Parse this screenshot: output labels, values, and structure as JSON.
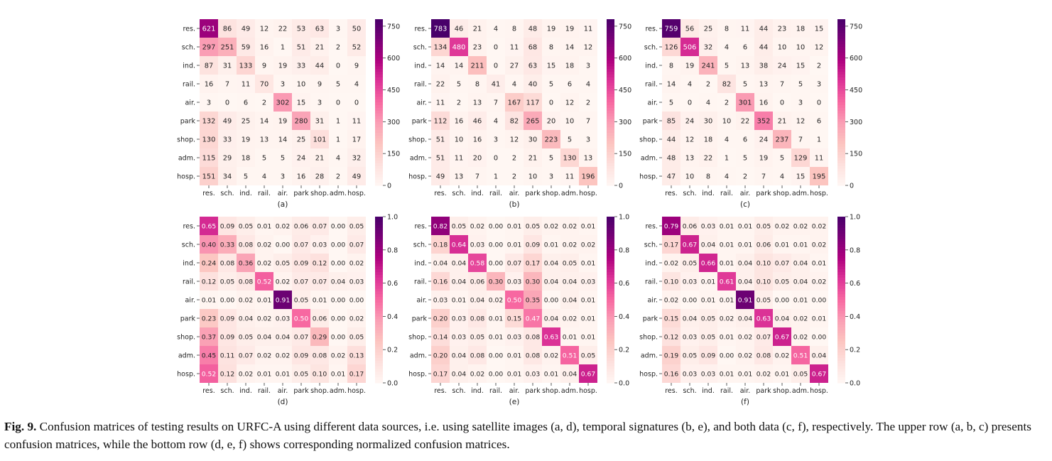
{
  "chart_data": [
    {
      "type": "heatmap",
      "panel": "(a)",
      "normalized": false,
      "rows": [
        "res.",
        "sch.",
        "ind.",
        "rail.",
        "air.",
        "park",
        "shop.",
        "adm.",
        "hosp."
      ],
      "cols": [
        "res.",
        "sch.",
        "ind.",
        "rail.",
        "air.",
        "park",
        "shop.",
        "adm.",
        "hosp."
      ],
      "values": [
        [
          621,
          86,
          49,
          12,
          22,
          53,
          63,
          3,
          50
        ],
        [
          297,
          251,
          59,
          16,
          1,
          51,
          21,
          2,
          52
        ],
        [
          87,
          31,
          133,
          9,
          19,
          33,
          44,
          0,
          9
        ],
        [
          16,
          7,
          11,
          70,
          3,
          10,
          9,
          5,
          4
        ],
        [
          3,
          0,
          6,
          2,
          302,
          15,
          3,
          0,
          0
        ],
        [
          132,
          49,
          25,
          14,
          19,
          280,
          31,
          1,
          11
        ],
        [
          130,
          33,
          19,
          13,
          14,
          25,
          101,
          1,
          17
        ],
        [
          115,
          29,
          18,
          5,
          5,
          24,
          21,
          4,
          32
        ],
        [
          151,
          34,
          5,
          4,
          3,
          16,
          28,
          2,
          49
        ]
      ],
      "vmin": 0,
      "vmax": 783,
      "cbar_ticks": [
        "750",
        "600",
        "450",
        "300",
        "150",
        "0"
      ],
      "cbar_values": [
        750,
        600,
        450,
        300,
        150,
        0
      ]
    },
    {
      "type": "heatmap",
      "panel": "(b)",
      "normalized": false,
      "rows": [
        "res.",
        "sch.",
        "ind.",
        "rail.",
        "air.",
        "park",
        "shop.",
        "adm.",
        "hosp."
      ],
      "cols": [
        "res.",
        "sch.",
        "ind.",
        "rail.",
        "air.",
        "park",
        "shop.",
        "adm.",
        "hosp."
      ],
      "values": [
        [
          783,
          46,
          21,
          4,
          8,
          48,
          19,
          19,
          11
        ],
        [
          134,
          480,
          23,
          0,
          11,
          68,
          8,
          14,
          12
        ],
        [
          14,
          14,
          211,
          0,
          27,
          63,
          15,
          18,
          3
        ],
        [
          22,
          5,
          8,
          41,
          4,
          40,
          5,
          6,
          4
        ],
        [
          11,
          2,
          13,
          7,
          167,
          117,
          0,
          12,
          2
        ],
        [
          112,
          16,
          46,
          4,
          82,
          265,
          20,
          10,
          7
        ],
        [
          51,
          10,
          16,
          3,
          12,
          30,
          223,
          5,
          3
        ],
        [
          51,
          11,
          20,
          0,
          2,
          21,
          5,
          130,
          13
        ],
        [
          49,
          13,
          7,
          1,
          2,
          10,
          3,
          11,
          196
        ]
      ],
      "vmin": 0,
      "vmax": 783,
      "cbar_ticks": [
        "750",
        "600",
        "450",
        "300",
        "150",
        "0"
      ],
      "cbar_values": [
        750,
        600,
        450,
        300,
        150,
        0
      ]
    },
    {
      "type": "heatmap",
      "panel": "(c)",
      "normalized": false,
      "rows": [
        "res.",
        "sch.",
        "ind.",
        "rail.",
        "air.",
        "park",
        "shop.",
        "adm.",
        "hosp."
      ],
      "cols": [
        "res.",
        "sch.",
        "ind.",
        "rail.",
        "air.",
        "park",
        "shop.",
        "adm.",
        "hosp."
      ],
      "values": [
        [
          759,
          56,
          25,
          8,
          11,
          44,
          23,
          18,
          15
        ],
        [
          126,
          506,
          32,
          4,
          6,
          44,
          10,
          10,
          12
        ],
        [
          8,
          19,
          241,
          5,
          13,
          38,
          24,
          15,
          2
        ],
        [
          14,
          4,
          2,
          82,
          5,
          13,
          7,
          5,
          3
        ],
        [
          5,
          0,
          4,
          2,
          301,
          16,
          0,
          3,
          0
        ],
        [
          85,
          24,
          30,
          10,
          22,
          352,
          21,
          12,
          6
        ],
        [
          44,
          12,
          18,
          4,
          6,
          24,
          237,
          7,
          1
        ],
        [
          48,
          13,
          22,
          1,
          5,
          19,
          5,
          129,
          11
        ],
        [
          47,
          10,
          8,
          4,
          2,
          7,
          4,
          15,
          195
        ]
      ],
      "vmin": 0,
      "vmax": 783,
      "cbar_ticks": [
        "750",
        "600",
        "450",
        "300",
        "150",
        "0"
      ],
      "cbar_values": [
        750,
        600,
        450,
        300,
        150,
        0
      ]
    },
    {
      "type": "heatmap",
      "panel": "(d)",
      "normalized": true,
      "rows": [
        "res.",
        "sch.",
        "ind.",
        "rail.",
        "air.",
        "park",
        "shop.",
        "adm.",
        "hosp."
      ],
      "cols": [
        "res.",
        "sch.",
        "ind.",
        "rail.",
        "air.",
        "park",
        "shop.",
        "adm.",
        "hosp."
      ],
      "values": [
        [
          0.65,
          0.09,
          0.05,
          0.01,
          0.02,
          0.06,
          0.07,
          0.0,
          0.05
        ],
        [
          0.4,
          0.33,
          0.08,
          0.02,
          0.0,
          0.07,
          0.03,
          0.0,
          0.07
        ],
        [
          0.24,
          0.08,
          0.36,
          0.02,
          0.05,
          0.09,
          0.12,
          0.0,
          0.02
        ],
        [
          0.12,
          0.05,
          0.08,
          0.52,
          0.02,
          0.07,
          0.07,
          0.04,
          0.03
        ],
        [
          0.01,
          0.0,
          0.02,
          0.01,
          0.91,
          0.05,
          0.01,
          0.0,
          0.0
        ],
        [
          0.23,
          0.09,
          0.04,
          0.02,
          0.03,
          0.5,
          0.06,
          0.0,
          0.02
        ],
        [
          0.37,
          0.09,
          0.05,
          0.04,
          0.04,
          0.07,
          0.29,
          0.0,
          0.05
        ],
        [
          0.45,
          0.11,
          0.07,
          0.02,
          0.02,
          0.09,
          0.08,
          0.02,
          0.13
        ],
        [
          0.52,
          0.12,
          0.02,
          0.01,
          0.01,
          0.05,
          0.1,
          0.01,
          0.17
        ]
      ],
      "vmin": 0,
      "vmax": 1.0,
      "cbar_ticks": [
        "1.0",
        "0.8",
        "0.6",
        "0.4",
        "0.2",
        "0.0"
      ],
      "cbar_values": [
        1.0,
        0.8,
        0.6,
        0.4,
        0.2,
        0.0
      ]
    },
    {
      "type": "heatmap",
      "panel": "(e)",
      "normalized": true,
      "rows": [
        "res.",
        "sch.",
        "ind.",
        "rail.",
        "air.",
        "park",
        "shop.",
        "adm.",
        "hosp."
      ],
      "cols": [
        "res.",
        "sch.",
        "ind.",
        "rail.",
        "air.",
        "park",
        "shop.",
        "adm.",
        "hosp."
      ],
      "values": [
        [
          0.82,
          0.05,
          0.02,
          0.0,
          0.01,
          0.05,
          0.02,
          0.02,
          0.01
        ],
        [
          0.18,
          0.64,
          0.03,
          0.0,
          0.01,
          0.09,
          0.01,
          0.02,
          0.02
        ],
        [
          0.04,
          0.04,
          0.58,
          0.0,
          0.07,
          0.17,
          0.04,
          0.05,
          0.01
        ],
        [
          0.16,
          0.04,
          0.06,
          0.3,
          0.03,
          0.3,
          0.04,
          0.04,
          0.03
        ],
        [
          0.03,
          0.01,
          0.04,
          0.02,
          0.5,
          0.35,
          0.0,
          0.04,
          0.01
        ],
        [
          0.2,
          0.03,
          0.08,
          0.01,
          0.15,
          0.47,
          0.04,
          0.02,
          0.01
        ],
        [
          0.14,
          0.03,
          0.05,
          0.01,
          0.03,
          0.08,
          0.63,
          0.01,
          0.01
        ],
        [
          0.2,
          0.04,
          0.08,
          0.0,
          0.01,
          0.08,
          0.02,
          0.51,
          0.05
        ],
        [
          0.17,
          0.04,
          0.02,
          0.0,
          0.01,
          0.03,
          0.01,
          0.04,
          0.67
        ]
      ],
      "vmin": 0,
      "vmax": 1.0,
      "cbar_ticks": [
        "1.0",
        "0.8",
        "0.6",
        "0.4",
        "0.2",
        "0.0"
      ],
      "cbar_values": [
        1.0,
        0.8,
        0.6,
        0.4,
        0.2,
        0.0
      ]
    },
    {
      "type": "heatmap",
      "panel": "(f)",
      "normalized": true,
      "rows": [
        "res.",
        "sch.",
        "ind.",
        "rail.",
        "air.",
        "park",
        "shop.",
        "adm.",
        "hosp."
      ],
      "cols": [
        "res.",
        "sch.",
        "ind.",
        "rail.",
        "air.",
        "park",
        "shop.",
        "adm.",
        "hosp."
      ],
      "values": [
        [
          0.79,
          0.06,
          0.03,
          0.01,
          0.01,
          0.05,
          0.02,
          0.02,
          0.02
        ],
        [
          0.17,
          0.67,
          0.04,
          0.01,
          0.01,
          0.06,
          0.01,
          0.01,
          0.02
        ],
        [
          0.02,
          0.05,
          0.66,
          0.01,
          0.04,
          0.1,
          0.07,
          0.04,
          0.01
        ],
        [
          0.1,
          0.03,
          0.01,
          0.61,
          0.04,
          0.1,
          0.05,
          0.04,
          0.02
        ],
        [
          0.02,
          0.0,
          0.01,
          0.01,
          0.91,
          0.05,
          0.0,
          0.01,
          0.0
        ],
        [
          0.15,
          0.04,
          0.05,
          0.02,
          0.04,
          0.63,
          0.04,
          0.02,
          0.01
        ],
        [
          0.12,
          0.03,
          0.05,
          0.01,
          0.02,
          0.07,
          0.67,
          0.02,
          0.0
        ],
        [
          0.19,
          0.05,
          0.09,
          0.0,
          0.02,
          0.08,
          0.02,
          0.51,
          0.04
        ],
        [
          0.16,
          0.03,
          0.03,
          0.01,
          0.01,
          0.02,
          0.01,
          0.05,
          0.67
        ]
      ],
      "vmin": 0,
      "vmax": 1.0,
      "cbar_ticks": [
        "1.0",
        "0.8",
        "0.6",
        "0.4",
        "0.2",
        "0.0"
      ],
      "cbar_values": [
        1.0,
        0.8,
        0.6,
        0.4,
        0.2,
        0.0
      ]
    }
  ],
  "caption": {
    "label": "Fig. 9.",
    "text": " Confusion matrices of testing results on URFC-A using different data sources, i.e. using satellite images (a, d), temporal signatures (b, e), and both data (c, f), respectively. The upper row (a, b, c) presents confusion matrices, while the bottom row (d, e, f) shows corresponding normalized confusion matrices."
  },
  "colors": {
    "cmap": [
      "#fff7f3",
      "#fde0dd",
      "#fcc5c0",
      "#fa9fb5",
      "#f768a1",
      "#dd3497",
      "#ae017e",
      "#7a0177",
      "#49006a"
    ],
    "text_dark": "#222222",
    "text_light": "#ffffff"
  }
}
